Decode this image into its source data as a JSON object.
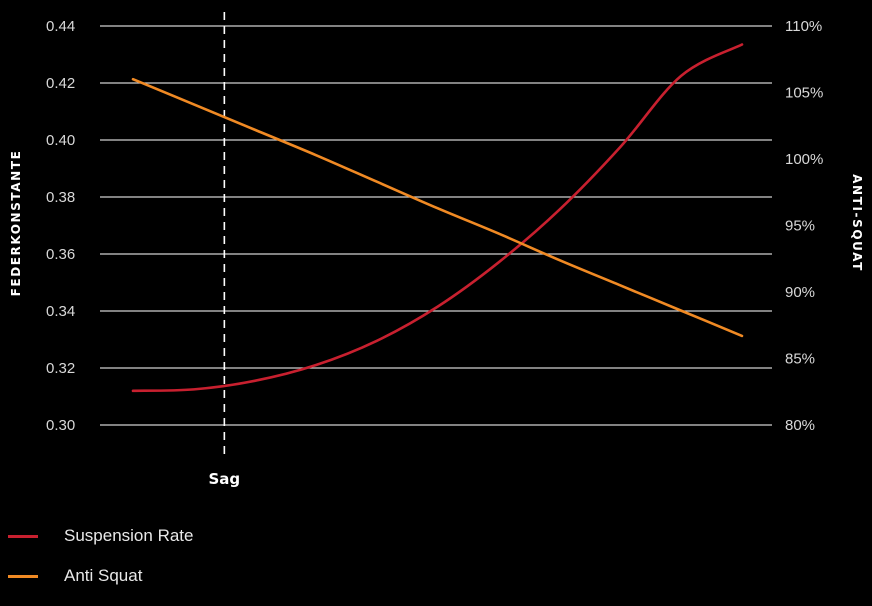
{
  "chart_data": {
    "type": "line",
    "left_axis": {
      "label": "FEDERKONSTANTE",
      "ticks": [
        "0.30",
        "0.32",
        "0.34",
        "0.36",
        "0.38",
        "0.40",
        "0.42",
        "0.44"
      ],
      "range": [
        0.3,
        0.44
      ]
    },
    "right_axis": {
      "label": "ANTI-SQUAT",
      "ticks": [
        "80%",
        "85%",
        "90%",
        "95%",
        "100%",
        "105%",
        "110%"
      ],
      "range": [
        80,
        110
      ]
    },
    "x_range": [
      0,
      100
    ],
    "grid": true,
    "marker": {
      "label": "Sag",
      "x": 15
    },
    "series": [
      {
        "name": "Suspension Rate",
        "axis": "left",
        "color": "#c8202f",
        "x": [
          0,
          10,
          20,
          30,
          40,
          50,
          60,
          70,
          80,
          90,
          100
        ],
        "y": [
          0.312,
          0.3125,
          0.3155,
          0.321,
          0.3295,
          0.3415,
          0.357,
          0.3755,
          0.3975,
          0.4225,
          0.4335
        ]
      },
      {
        "name": "Anti Squat",
        "axis": "right",
        "color": "#f08a24",
        "x": [
          0,
          10,
          20,
          30,
          40,
          50,
          60,
          70,
          80,
          90,
          100
        ],
        "y": [
          106.0,
          104.1,
          102.2,
          100.3,
          98.3,
          96.3,
          94.4,
          92.4,
          90.5,
          88.6,
          86.7
        ]
      }
    ]
  },
  "legend": [
    {
      "label": "Suspension Rate",
      "color": "#c8202f"
    },
    {
      "label": "Anti Squat",
      "color": "#f08a24"
    }
  ]
}
